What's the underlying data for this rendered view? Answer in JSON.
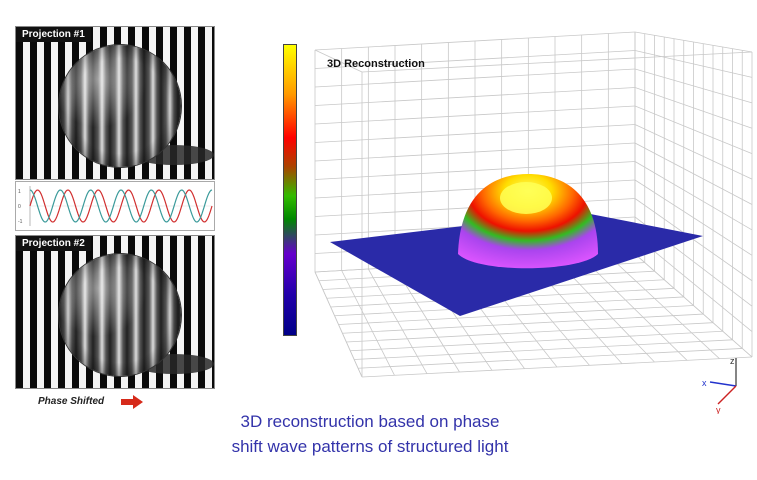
{
  "left": {
    "projection1_label": "Projection #1",
    "projection2_label": "Projection #2",
    "phase_label": "Phase Shifted",
    "wave_tick_top": "1",
    "wave_tick_mid": "0",
    "wave_tick_bot": "-1"
  },
  "reconstruction": {
    "title": "3D Reconstruction",
    "axis_x": "x",
    "axis_y": "y",
    "axis_z": "z"
  },
  "caption": {
    "line1": "3D reconstruction based on phase",
    "line2": "shift wave patterns of structured light"
  },
  "colors": {
    "caption": "#3333aa",
    "plane": "#2a2aa8",
    "wave_red": "#d13030",
    "wave_teal": "#3a9a9a",
    "arrow": "#d62a1a",
    "grid": "#c8c8c8"
  }
}
